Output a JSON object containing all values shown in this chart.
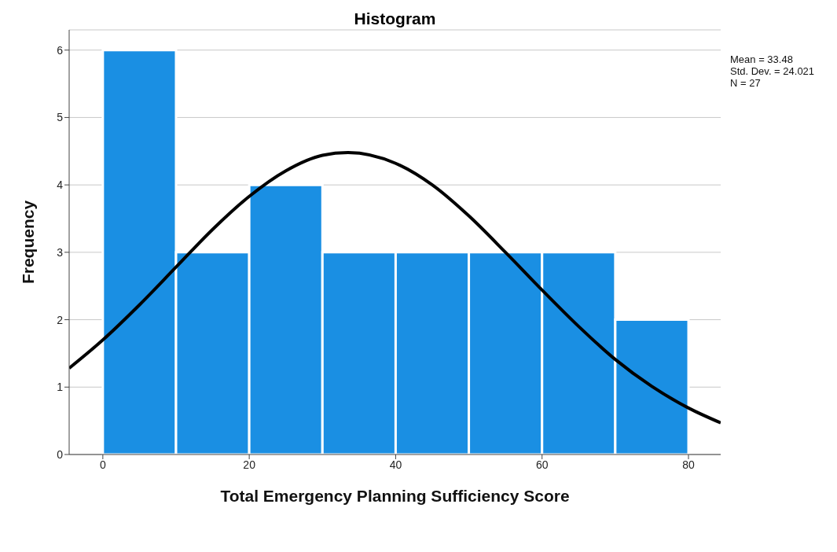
{
  "chart_data": {
    "type": "histogram",
    "title": "Histogram",
    "xlabel": "Total Emergency Planning Sufficiency Score",
    "ylabel": "Frequency",
    "bins": [
      0,
      10,
      20,
      30,
      40,
      50,
      60,
      70,
      80
    ],
    "values": [
      6,
      3,
      4,
      3,
      3,
      3,
      3,
      2
    ],
    "color": "#1a8fe3",
    "xlim": [
      -4.6,
      84.4
    ],
    "ylim": [
      0,
      6.3
    ],
    "xticks": [
      0,
      20,
      40,
      60,
      80
    ],
    "yticks": [
      0,
      1,
      2,
      3,
      4,
      5,
      6
    ],
    "grid": "y",
    "annotations": [
      "Mean = 33.48",
      "Std. Dev. = 24.021",
      "N = 27"
    ],
    "series": [
      {
        "type": "line",
        "color": "#000000",
        "x": [
          -4.6,
          0,
          5,
          10,
          15,
          20,
          25,
          30,
          33.5,
          40,
          45,
          50,
          55,
          60,
          65,
          70,
          75,
          80,
          84.4
        ],
        "values": [
          1.28,
          1.7,
          2.22,
          2.78,
          3.34,
          3.83,
          4.21,
          4.44,
          4.48,
          4.32,
          4.0,
          3.54,
          3.0,
          2.44,
          1.9,
          1.41,
          1.01,
          0.69,
          0.47
        ]
      }
    ]
  }
}
